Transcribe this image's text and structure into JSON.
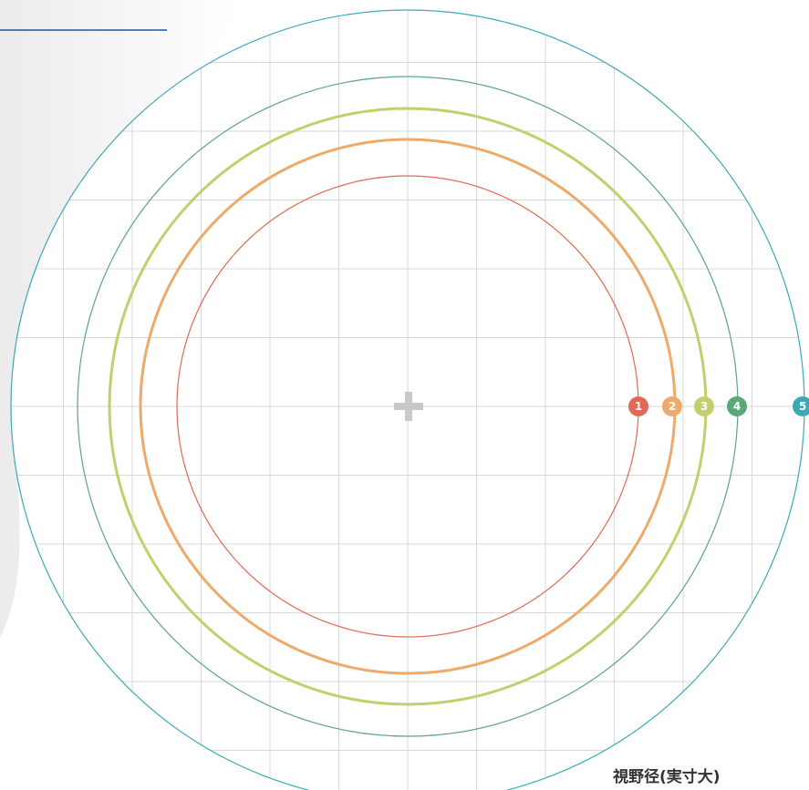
{
  "markers": [
    {
      "label": "1"
    },
    {
      "label": "2"
    },
    {
      "label": "3"
    },
    {
      "label": "4"
    },
    {
      "label": "5"
    }
  ],
  "caption": "視野径(実寸大)"
}
